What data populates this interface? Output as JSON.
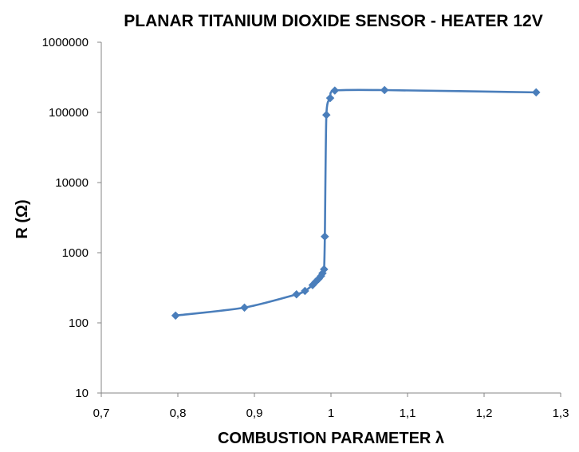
{
  "chart_data": {
    "type": "scatter",
    "title": "PLANAR TITANIUM DIOXIDE SENSOR - HEATER 12V",
    "xlabel": "COMBUSTION PARAMETER λ",
    "ylabel": "R (Ω)",
    "xlim": [
      0.7,
      1.3
    ],
    "ylim": [
      10,
      1000000
    ],
    "yscale": "log",
    "grid": false,
    "x_ticks": [
      0.7,
      0.8,
      0.9,
      1.0,
      1.1,
      1.2,
      1.3
    ],
    "x_tick_labels": [
      "0,7",
      "0,8",
      "0,9",
      "1",
      "1,1",
      "1,2",
      "1,3"
    ],
    "y_ticks": [
      10,
      100,
      1000,
      10000,
      100000,
      1000000
    ],
    "y_tick_labels": [
      "10",
      "100",
      "1000",
      "10000",
      "100000",
      "1000000"
    ],
    "series": [
      {
        "color": "#4a7ebb",
        "marker": "diamond",
        "line": "smooth",
        "points": [
          {
            "x": 0.797,
            "y": 127
          },
          {
            "x": 0.887,
            "y": 165
          },
          {
            "x": 0.955,
            "y": 255
          },
          {
            "x": 0.966,
            "y": 285
          },
          {
            "x": 0.976,
            "y": 345
          },
          {
            "x": 0.98,
            "y": 385
          },
          {
            "x": 0.984,
            "y": 425
          },
          {
            "x": 0.987,
            "y": 465
          },
          {
            "x": 0.989,
            "y": 510
          },
          {
            "x": 0.991,
            "y": 580
          },
          {
            "x": 0.992,
            "y": 1700
          },
          {
            "x": 0.994,
            "y": 92000
          },
          {
            "x": 0.999,
            "y": 160000
          },
          {
            "x": 1.005,
            "y": 205000
          },
          {
            "x": 1.07,
            "y": 208000
          },
          {
            "x": 1.268,
            "y": 193000
          }
        ]
      }
    ]
  }
}
